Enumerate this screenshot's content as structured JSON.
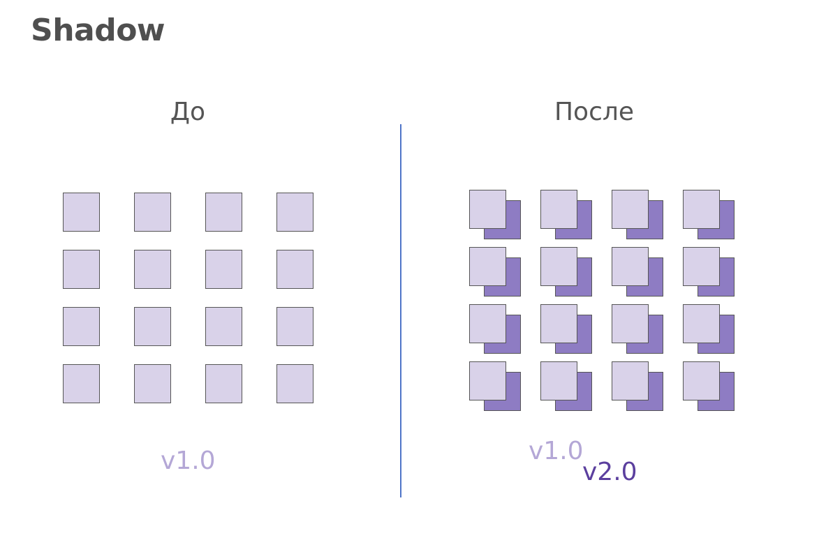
{
  "title": "Shadow",
  "before": {
    "label": "До",
    "version": "v1.0",
    "rows": 4,
    "cols": 4
  },
  "after": {
    "label": "После",
    "old_version": "v1.0",
    "new_version": "v2.0",
    "rows": 4,
    "cols": 4
  },
  "colors": {
    "square_fill": "#d9d2e9",
    "shadow_fill": "#8e7cc3",
    "border": "#555555",
    "divider": "#4f74c8",
    "old_version_text": "#b4a7d6",
    "new_version_text": "#5b3f9e",
    "title_text": "#4f4f4f"
  }
}
